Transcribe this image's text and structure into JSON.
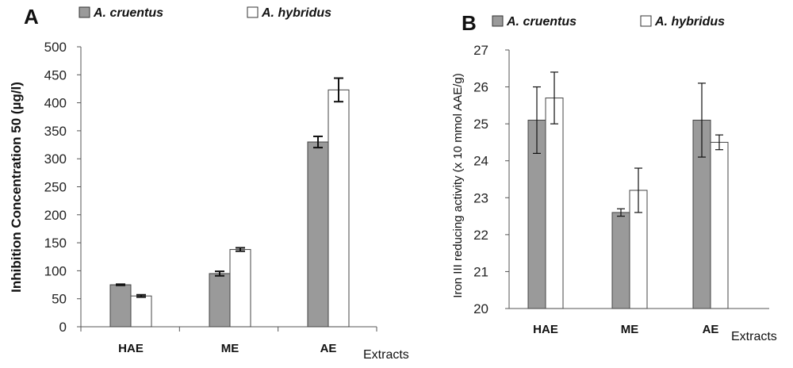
{
  "chart_data": [
    {
      "type": "bar",
      "panel_label": "A",
      "categories": [
        "HAE",
        "ME",
        "AE"
      ],
      "xlabel": "Extracts",
      "ylabel": "Inhibition  Concentration  50 (µg/l)",
      "ylim": [
        0,
        500
      ],
      "yticks": [
        "0",
        "50",
        "100",
        "150",
        "200",
        "250",
        "300",
        "350",
        "400",
        "450",
        "500"
      ],
      "series": [
        {
          "name": "A. cruentus",
          "color": "#9a9a9a",
          "values": [
            75,
            95,
            330
          ],
          "errors": [
            1,
            4,
            10
          ]
        },
        {
          "name": "A. hybridus",
          "color": "#ffffff",
          "values": [
            55,
            138,
            423
          ],
          "errors": [
            2,
            3,
            21
          ]
        }
      ]
    },
    {
      "type": "bar",
      "panel_label": "B",
      "categories": [
        "HAE",
        "ME",
        "AE"
      ],
      "xlabel": "Extracts",
      "ylabel": "Iron III reducing activity (x 10 mmol AAE/g)",
      "ylim": [
        20,
        27
      ],
      "yticks": [
        "20",
        "21",
        "22",
        "23",
        "24",
        "25",
        "26",
        "27"
      ],
      "series": [
        {
          "name": "A. cruentus",
          "color": "#9a9a9a",
          "values": [
            25.1,
            22.6,
            25.1
          ],
          "errors": [
            0.9,
            0.1,
            1.0
          ]
        },
        {
          "name": "A. hybridus",
          "color": "#ffffff",
          "values": [
            25.7,
            23.2,
            24.5
          ],
          "errors": [
            0.7,
            0.6,
            0.2
          ]
        }
      ]
    }
  ]
}
